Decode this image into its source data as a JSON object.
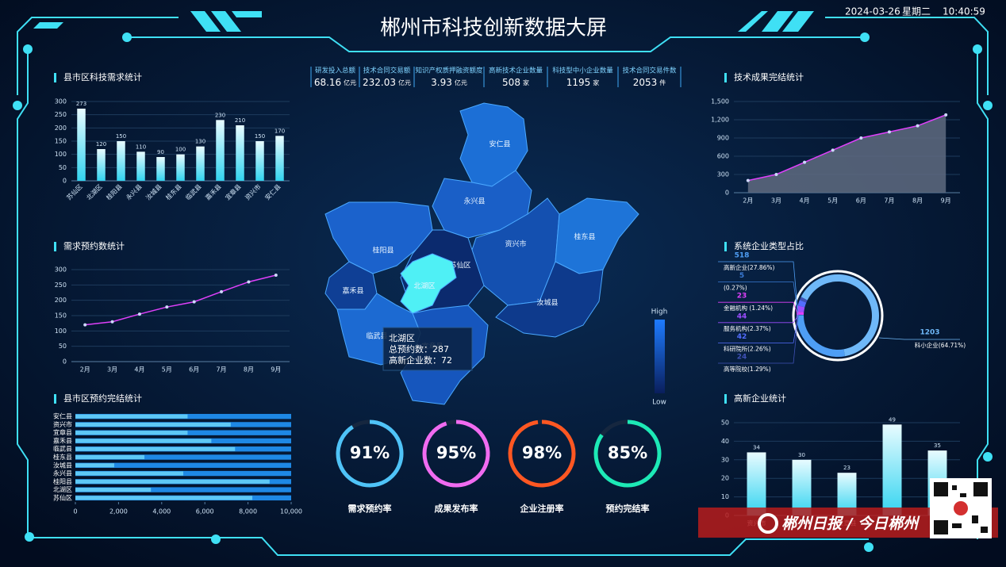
{
  "header": {
    "title": "郴州市科技创新数据大屏",
    "date": "2024-03-26",
    "weekday": "星期二",
    "time": "10:40:59"
  },
  "kpis": [
    {
      "label": "研发投入总额",
      "value": 68.16,
      "unit": "亿元"
    },
    {
      "label": "技术合同交易额",
      "value": 232.03,
      "unit": "亿元"
    },
    {
      "label": "知识产权质押融资额度",
      "value": 3.93,
      "unit": "亿元"
    },
    {
      "label": "高新技术企业数量",
      "value": 508,
      "unit": "家"
    },
    {
      "label": "科技型中小企业数量",
      "value": 1195,
      "unit": "家"
    },
    {
      "label": "技术合同交易件数",
      "value": 2053,
      "unit": "件"
    }
  ],
  "map": {
    "regions": [
      "安仁县",
      "永兴县",
      "资兴市",
      "桂东县",
      "汝城县",
      "桂阳县",
      "苏仙区",
      "北湖区",
      "嘉禾县",
      "临武县",
      "宜章县"
    ],
    "tooltip": {
      "title": "北湖区",
      "rows": [
        {
          "label": "总预约数：",
          "value": 287
        },
        {
          "label": "高新企业数：",
          "value": 72
        }
      ]
    },
    "legend": {
      "high": "High",
      "low": "Low"
    }
  },
  "watermark": "郴州日报 / 今日郴州",
  "chart_data": [
    {
      "type": "bar",
      "title": "县市区科技需求统计",
      "categories": [
        "苏仙区",
        "北湖区",
        "桂阳县",
        "永兴县",
        "汝城县",
        "桂东县",
        "临武县",
        "嘉禾县",
        "宜章县",
        "资兴市",
        "安仁县"
      ],
      "values": [
        273,
        120,
        150,
        110,
        90,
        100,
        130,
        230,
        210,
        150,
        170
      ],
      "color": "#32d4f0",
      "ylim": [
        0,
        300
      ],
      "yticks": [
        0,
        50,
        100,
        150,
        200,
        250,
        300
      ],
      "grid": true
    },
    {
      "type": "line",
      "title": "需求预约数统计",
      "categories": [
        "2月",
        "3月",
        "4月",
        "5月",
        "6月",
        "7月",
        "8月",
        "9月"
      ],
      "values": [
        120,
        130,
        155,
        178,
        195,
        228,
        260,
        282
      ],
      "color": "#e040fb",
      "ylim": [
        0,
        300
      ],
      "yticks": [
        0,
        50,
        100,
        150,
        200,
        250,
        300
      ],
      "grid": true
    },
    {
      "type": "hbar",
      "title": "县市区预约完结统计",
      "categories": [
        "安仁县",
        "资兴市",
        "宜章县",
        "嘉禾县",
        "临武县",
        "桂东县",
        "汝城县",
        "永兴县",
        "桂阳县",
        "北湖区",
        "苏仙区"
      ],
      "series": [
        {
          "color": "#1e88e5",
          "values": [
            10000,
            10000,
            10000,
            10000,
            10000,
            10000,
            10000,
            10000,
            10000,
            10000,
            10000
          ]
        },
        {
          "color": "#5ec8f5",
          "values": [
            5200,
            7200,
            5200,
            6300,
            7400,
            3200,
            1800,
            5000,
            9000,
            3500,
            8200
          ]
        }
      ],
      "xlim": [
        0,
        10000
      ],
      "xticks": [
        0,
        {
          "value": 2000,
          "label": "2,000"
        },
        {
          "value": 4000,
          "label": "4,000"
        },
        {
          "value": 6000,
          "label": "6,000"
        },
        {
          "value": 8000,
          "label": "8,000"
        },
        {
          "value": 10000,
          "label": "10,000"
        }
      ],
      "grid": false
    },
    {
      "type": "area",
      "title": "技术成果完结统计",
      "categories": [
        "2月",
        "3月",
        "4月",
        "5月",
        "6月",
        "7月",
        "8月",
        "9月"
      ],
      "values": [
        200,
        300,
        500,
        700,
        900,
        1000,
        1100,
        1280
      ],
      "color": "#e040fb",
      "fill": "#5f6b80",
      "ylim": [
        0,
        1500
      ],
      "yticks": [
        0,
        300,
        600,
        900,
        {
          "value": 1200,
          "label": "1,200"
        },
        {
          "value": 1500,
          "label": "1,500"
        }
      ],
      "grid": true
    },
    {
      "type": "donut",
      "title": "系统企业类型占比",
      "categories": [
        "高新企业(27.86%)",
        "(0.27%)",
        "金融机构 (1.24%)",
        "服务机构(2.37%)",
        "科研院所(2.26%)",
        "高等院校(1.29%)",
        "科小企业(64.71%)"
      ],
      "values": [
        518,
        5,
        23,
        44,
        42,
        24,
        1203
      ],
      "colors": [
        "#4e9ef5",
        "#3a7bd5",
        "#e040fb",
        "#9c4dff",
        "#536dfe",
        "#3f51b5",
        "#6fb8f8"
      ]
    },
    {
      "type": "bar",
      "title": "高新企业统计",
      "categories": [
        "资兴市",
        null,
        "宜章县",
        null,
        null
      ],
      "values": [
        34,
        30,
        23,
        49,
        35
      ],
      "color": "#32d4f0",
      "ylim": [
        0,
        50
      ],
      "yticks": [
        0,
        10,
        20,
        30,
        40,
        50
      ],
      "grid": true
    },
    {
      "type": "gauge",
      "categories": [
        "需求预约率",
        "成果发布率",
        "企业注册率",
        "预约完结率"
      ],
      "values": [
        91,
        95,
        98,
        85
      ],
      "value_labels": [
        "91%",
        "95%",
        "98%",
        "85%"
      ],
      "colors": [
        "#4fc3f7",
        "#f06bf0",
        "#ff5722",
        "#1de9b6"
      ]
    }
  ]
}
